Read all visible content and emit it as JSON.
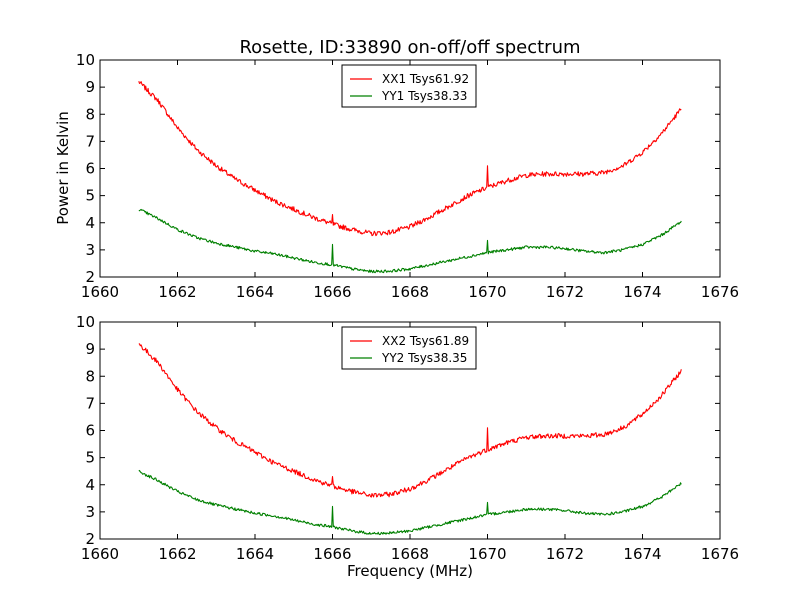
{
  "figure": {
    "title": "Rosette, ID:33890 on-off/off spectrum",
    "ylabel": "Power in Kelvin",
    "xlabel": "Frequency (MHz)"
  },
  "chart_data": [
    {
      "type": "line",
      "xlim": [
        1660,
        1676
      ],
      "ylim": [
        2,
        10
      ],
      "xticks": [
        1660,
        1662,
        1664,
        1666,
        1668,
        1670,
        1672,
        1674,
        1676
      ],
      "yticks": [
        2,
        3,
        4,
        5,
        6,
        7,
        8,
        9,
        10
      ],
      "legend_position": "top-center",
      "series": [
        {
          "name": "XX1 Tsys61.92",
          "color": "#ff0000",
          "x": [
            1661.0,
            1661.5,
            1662.0,
            1662.5,
            1663.0,
            1663.5,
            1664.0,
            1664.5,
            1665.0,
            1665.5,
            1666.0,
            1666.5,
            1667.0,
            1667.5,
            1668.0,
            1668.5,
            1669.0,
            1669.5,
            1670.0,
            1670.5,
            1671.0,
            1671.5,
            1672.0,
            1672.5,
            1673.0,
            1673.5,
            1674.0,
            1674.5,
            1675.0
          ],
          "y": [
            9.2,
            8.5,
            7.5,
            6.7,
            6.1,
            5.6,
            5.2,
            4.8,
            4.5,
            4.2,
            3.95,
            3.75,
            3.6,
            3.65,
            3.85,
            4.2,
            4.6,
            5.0,
            5.3,
            5.55,
            5.75,
            5.8,
            5.8,
            5.8,
            5.85,
            6.1,
            6.6,
            7.3,
            8.2
          ],
          "spikes": [
            {
              "x": 1666.0,
              "y": 4.3
            },
            {
              "x": 1670.0,
              "y": 6.1
            }
          ]
        },
        {
          "name": "YY1 Tsys38.33",
          "color": "#008000",
          "x": [
            1661.0,
            1661.5,
            1662.0,
            1662.5,
            1663.0,
            1663.5,
            1664.0,
            1664.5,
            1665.0,
            1665.5,
            1666.0,
            1666.5,
            1667.0,
            1667.5,
            1668.0,
            1668.5,
            1669.0,
            1669.5,
            1670.0,
            1670.5,
            1671.0,
            1671.5,
            1672.0,
            1672.5,
            1673.0,
            1673.5,
            1674.0,
            1674.5,
            1675.0
          ],
          "y": [
            4.5,
            4.15,
            3.75,
            3.45,
            3.25,
            3.1,
            2.95,
            2.85,
            2.7,
            2.55,
            2.45,
            2.3,
            2.2,
            2.22,
            2.3,
            2.45,
            2.6,
            2.75,
            2.9,
            3.0,
            3.1,
            3.1,
            3.05,
            2.95,
            2.9,
            3.0,
            3.2,
            3.55,
            4.05
          ],
          "spikes": [
            {
              "x": 1666.0,
              "y": 3.2
            },
            {
              "x": 1670.0,
              "y": 3.35
            }
          ]
        }
      ]
    },
    {
      "type": "line",
      "xlim": [
        1660,
        1676
      ],
      "ylim": [
        2,
        10
      ],
      "xticks": [
        1660,
        1662,
        1664,
        1666,
        1668,
        1670,
        1672,
        1674,
        1676
      ],
      "yticks": [
        2,
        3,
        4,
        5,
        6,
        7,
        8,
        9,
        10
      ],
      "legend_position": "top-center",
      "series": [
        {
          "name": "XX2 Tsys61.89",
          "color": "#ff0000",
          "x": [
            1661.0,
            1661.5,
            1662.0,
            1662.5,
            1663.0,
            1663.5,
            1664.0,
            1664.5,
            1665.0,
            1665.5,
            1666.0,
            1666.5,
            1667.0,
            1667.5,
            1668.0,
            1668.5,
            1669.0,
            1669.5,
            1670.0,
            1670.5,
            1671.0,
            1671.5,
            1672.0,
            1672.5,
            1673.0,
            1673.5,
            1674.0,
            1674.5,
            1675.0
          ],
          "y": [
            9.2,
            8.5,
            7.5,
            6.7,
            6.1,
            5.6,
            5.2,
            4.8,
            4.5,
            4.2,
            3.95,
            3.75,
            3.6,
            3.65,
            3.85,
            4.2,
            4.6,
            5.0,
            5.3,
            5.55,
            5.75,
            5.8,
            5.8,
            5.8,
            5.85,
            6.1,
            6.6,
            7.3,
            8.2
          ],
          "spikes": [
            {
              "x": 1666.0,
              "y": 4.3
            },
            {
              "x": 1670.0,
              "y": 6.1
            }
          ]
        },
        {
          "name": "YY2 Tsys38.35",
          "color": "#008000",
          "x": [
            1661.0,
            1661.5,
            1662.0,
            1662.5,
            1663.0,
            1663.5,
            1664.0,
            1664.5,
            1665.0,
            1665.5,
            1666.0,
            1666.5,
            1667.0,
            1667.5,
            1668.0,
            1668.5,
            1669.0,
            1669.5,
            1670.0,
            1670.5,
            1671.0,
            1671.5,
            1672.0,
            1672.5,
            1673.0,
            1673.5,
            1674.0,
            1674.5,
            1675.0
          ],
          "y": [
            4.5,
            4.15,
            3.75,
            3.45,
            3.25,
            3.1,
            2.95,
            2.85,
            2.7,
            2.55,
            2.45,
            2.3,
            2.2,
            2.22,
            2.3,
            2.45,
            2.6,
            2.75,
            2.9,
            3.0,
            3.1,
            3.1,
            3.05,
            2.95,
            2.9,
            3.0,
            3.2,
            3.55,
            4.05
          ],
          "spikes": [
            {
              "x": 1666.0,
              "y": 3.2
            },
            {
              "x": 1670.0,
              "y": 3.35
            }
          ]
        }
      ]
    }
  ]
}
